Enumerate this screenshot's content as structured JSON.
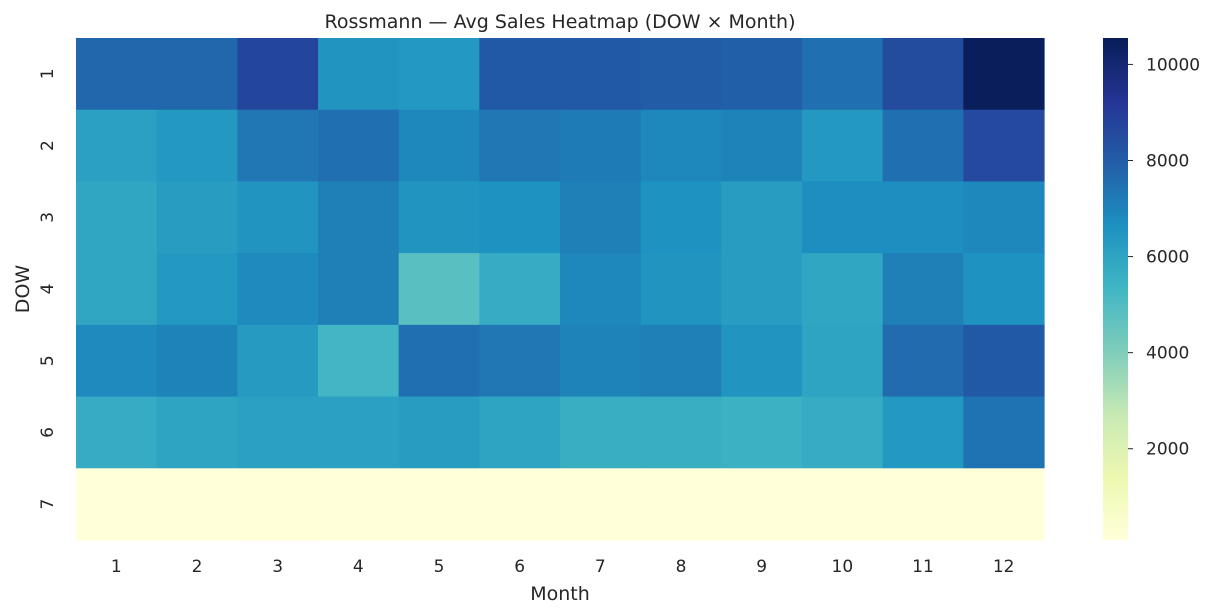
{
  "chart_data": {
    "type": "heatmap",
    "title": "Rossmann — Avg Sales Heatmap (DOW × Month)",
    "xlabel": "Month",
    "ylabel": "DOW",
    "x": [
      "1",
      "2",
      "3",
      "4",
      "5",
      "6",
      "7",
      "8",
      "9",
      "10",
      "11",
      "12"
    ],
    "y": [
      "1",
      "2",
      "3",
      "4",
      "5",
      "6",
      "7"
    ],
    "values": [
      [
        7700,
        7700,
        8700,
        6500,
        6400,
        8100,
        8100,
        8000,
        7900,
        7500,
        8500,
        10500
      ],
      [
        6100,
        6400,
        7300,
        7500,
        6900,
        7300,
        7200,
        6900,
        7000,
        6400,
        7500,
        8600
      ],
      [
        5900,
        6200,
        6500,
        7100,
        6500,
        6600,
        7100,
        6600,
        6200,
        6700,
        6700,
        6900
      ],
      [
        5900,
        6400,
        6800,
        7100,
        4800,
        5700,
        6900,
        6500,
        6200,
        5900,
        7100,
        6600
      ],
      [
        6800,
        7000,
        6300,
        5300,
        7500,
        7300,
        7000,
        7100,
        6500,
        6000,
        7600,
        8100
      ],
      [
        5700,
        6000,
        6100,
        6100,
        6200,
        6000,
        5600,
        5600,
        5500,
        5700,
        6400,
        7400
      ],
      [
        110,
        105,
        120,
        110,
        110,
        110,
        105,
        110,
        110,
        110,
        110,
        115
      ]
    ],
    "colorbar": {
      "colormap": "YlGnBu",
      "vmin": 100,
      "vmax": 10550,
      "ticks": [
        2000,
        4000,
        6000,
        8000,
        10000
      ]
    }
  }
}
